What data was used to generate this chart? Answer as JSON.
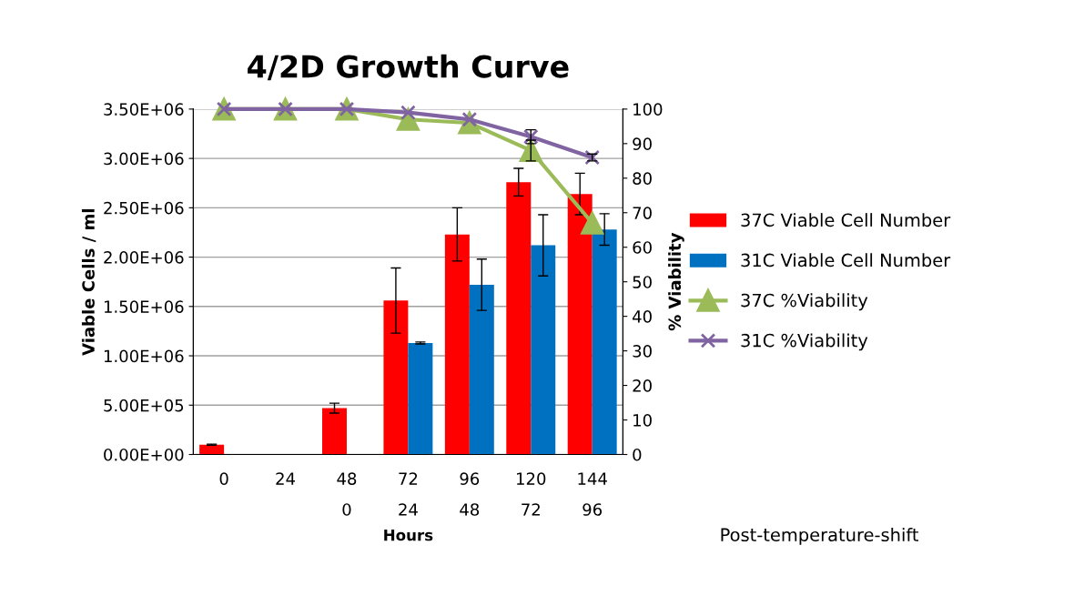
{
  "chart_data": {
    "type": "bar",
    "title": "4/2D Growth Curve",
    "xlabel": "Hours",
    "ylabel": "Viable Cells / ml",
    "y2label": "% Viability",
    "categories": [
      "0",
      "24",
      "48\n0",
      "72\n24",
      "96\n48",
      "120\n72",
      "144\n96"
    ],
    "series": [
      {
        "name": "37C Viable Cell Number",
        "color": "#ff0000",
        "values": [
          100000,
          null,
          470000,
          1560000,
          2230000,
          2760000,
          2640000
        ],
        "errors": [
          5000,
          null,
          50000,
          330000,
          270000,
          140000,
          210000
        ]
      },
      {
        "name": "31C Viable Cell Number",
        "color": "#0070c0",
        "values": [
          null,
          null,
          null,
          1130000,
          1720000,
          2120000,
          2280000
        ],
        "errors": [
          null,
          null,
          null,
          10000,
          260000,
          310000,
          160000
        ]
      },
      {
        "name": "37C %Viability",
        "type": "line",
        "axis": "y2",
        "marker": "triangle",
        "color": "#9bbb59",
        "values": [
          100,
          100,
          100,
          97,
          96,
          88,
          67
        ],
        "errors": [
          null,
          null,
          null,
          null,
          null,
          3,
          null
        ]
      },
      {
        "name": "31C %Viability",
        "type": "line",
        "axis": "y2",
        "marker": "cross",
        "color": "#8064a2",
        "values": [
          100,
          100,
          100,
          99,
          97,
          92,
          86
        ],
        "errors": [
          null,
          null,
          null,
          null,
          null,
          2,
          1
        ]
      }
    ],
    "ylim": [
      0,
      3500000
    ],
    "yticks": [
      {
        "value": 0,
        "label": "0.00E+00"
      },
      {
        "value": 500000,
        "label": "5.00E+05"
      },
      {
        "value": 1000000,
        "label": "1.00E+06"
      },
      {
        "value": 1500000,
        "label": "1.50E+06"
      },
      {
        "value": 2000000,
        "label": "2.00E+06"
      },
      {
        "value": 2500000,
        "label": "2.50E+06"
      },
      {
        "value": 3000000,
        "label": "3.00E+06"
      },
      {
        "value": 3500000,
        "label": "3.50E+06"
      }
    ],
    "y2lim": [
      0,
      100
    ],
    "y2ticks": [
      0,
      10,
      20,
      30,
      40,
      50,
      60,
      70,
      80,
      90,
      100
    ],
    "grid": "y",
    "legend": "right",
    "annotations": [
      "Post-temperature-shift"
    ]
  }
}
